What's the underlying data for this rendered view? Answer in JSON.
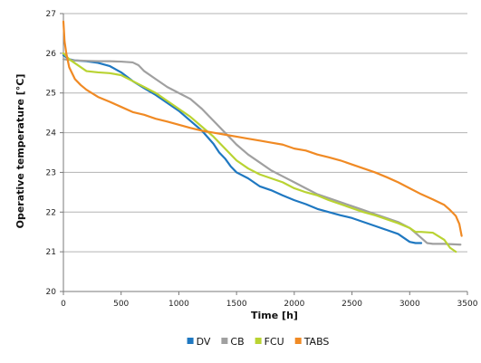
{
  "chart_data": {
    "type": "line",
    "xlabel": "Time [h]",
    "ylabel": "Operative temperature [°C]",
    "xlim": [
      0,
      3500
    ],
    "ylim": [
      20,
      27
    ],
    "x_ticks": [
      0,
      500,
      1000,
      1500,
      2000,
      2500,
      3000,
      3500
    ],
    "y_ticks": [
      20,
      21,
      22,
      23,
      24,
      25,
      26,
      27
    ],
    "grid": "horizontal",
    "legend_position": "bottom",
    "series": [
      {
        "name": "DV",
        "color": "#1f78c1",
        "points": [
          [
            0,
            25.95
          ],
          [
            50,
            25.85
          ],
          [
            100,
            25.82
          ],
          [
            200,
            25.8
          ],
          [
            300,
            25.76
          ],
          [
            400,
            25.68
          ],
          [
            500,
            25.52
          ],
          [
            600,
            25.3
          ],
          [
            700,
            25.12
          ],
          [
            800,
            24.95
          ],
          [
            900,
            24.75
          ],
          [
            1000,
            24.55
          ],
          [
            1100,
            24.3
          ],
          [
            1200,
            24.05
          ],
          [
            1300,
            23.72
          ],
          [
            1350,
            23.5
          ],
          [
            1400,
            23.35
          ],
          [
            1450,
            23.15
          ],
          [
            1500,
            23.0
          ],
          [
            1600,
            22.85
          ],
          [
            1700,
            22.65
          ],
          [
            1800,
            22.55
          ],
          [
            1900,
            22.42
          ],
          [
            2000,
            22.3
          ],
          [
            2100,
            22.2
          ],
          [
            2200,
            22.08
          ],
          [
            2300,
            22.0
          ],
          [
            2400,
            21.92
          ],
          [
            2500,
            21.85
          ],
          [
            2600,
            21.75
          ],
          [
            2700,
            21.65
          ],
          [
            2800,
            21.55
          ],
          [
            2900,
            21.45
          ],
          [
            2950,
            21.35
          ],
          [
            3000,
            21.25
          ],
          [
            3050,
            21.22
          ],
          [
            3100,
            21.22
          ]
        ]
      },
      {
        "name": "CB",
        "color": "#a0a0a0",
        "points": [
          [
            0,
            25.85
          ],
          [
            100,
            25.82
          ],
          [
            200,
            25.81
          ],
          [
            300,
            25.8
          ],
          [
            400,
            25.8
          ],
          [
            500,
            25.79
          ],
          [
            600,
            25.77
          ],
          [
            650,
            25.7
          ],
          [
            700,
            25.55
          ],
          [
            800,
            25.35
          ],
          [
            900,
            25.15
          ],
          [
            1000,
            25.0
          ],
          [
            1100,
            24.85
          ],
          [
            1200,
            24.6
          ],
          [
            1300,
            24.3
          ],
          [
            1400,
            24.0
          ],
          [
            1500,
            23.7
          ],
          [
            1600,
            23.45
          ],
          [
            1700,
            23.25
          ],
          [
            1800,
            23.05
          ],
          [
            1900,
            22.9
          ],
          [
            2000,
            22.75
          ],
          [
            2100,
            22.6
          ],
          [
            2200,
            22.45
          ],
          [
            2300,
            22.35
          ],
          [
            2400,
            22.25
          ],
          [
            2500,
            22.15
          ],
          [
            2600,
            22.05
          ],
          [
            2700,
            21.95
          ],
          [
            2800,
            21.85
          ],
          [
            2900,
            21.75
          ],
          [
            3000,
            21.6
          ],
          [
            3100,
            21.35
          ],
          [
            3150,
            21.22
          ],
          [
            3200,
            21.2
          ],
          [
            3300,
            21.2
          ],
          [
            3440,
            21.18
          ]
        ]
      },
      {
        "name": "FCU",
        "color": "#b9d332",
        "points": [
          [
            0,
            26.0
          ],
          [
            50,
            25.85
          ],
          [
            100,
            25.75
          ],
          [
            150,
            25.65
          ],
          [
            200,
            25.55
          ],
          [
            300,
            25.52
          ],
          [
            400,
            25.5
          ],
          [
            500,
            25.45
          ],
          [
            600,
            25.3
          ],
          [
            700,
            25.15
          ],
          [
            800,
            25.0
          ],
          [
            900,
            24.8
          ],
          [
            1000,
            24.6
          ],
          [
            1100,
            24.4
          ],
          [
            1200,
            24.15
          ],
          [
            1300,
            23.9
          ],
          [
            1400,
            23.6
          ],
          [
            1500,
            23.3
          ],
          [
            1600,
            23.1
          ],
          [
            1700,
            22.95
          ],
          [
            1800,
            22.85
          ],
          [
            1900,
            22.75
          ],
          [
            2000,
            22.6
          ],
          [
            2100,
            22.5
          ],
          [
            2200,
            22.42
          ],
          [
            2300,
            22.3
          ],
          [
            2400,
            22.2
          ],
          [
            2500,
            22.1
          ],
          [
            2600,
            22.0
          ],
          [
            2700,
            21.92
          ],
          [
            2800,
            21.82
          ],
          [
            2900,
            21.72
          ],
          [
            3000,
            21.6
          ],
          [
            3050,
            21.5
          ],
          [
            3100,
            21.5
          ],
          [
            3200,
            21.48
          ],
          [
            3300,
            21.3
          ],
          [
            3350,
            21.1
          ],
          [
            3400,
            21.0
          ]
        ]
      },
      {
        "name": "TABS",
        "color": "#f08a24",
        "points": [
          [
            0,
            26.8
          ],
          [
            10,
            26.3
          ],
          [
            25,
            26.0
          ],
          [
            50,
            25.65
          ],
          [
            100,
            25.35
          ],
          [
            150,
            25.2
          ],
          [
            200,
            25.08
          ],
          [
            300,
            24.9
          ],
          [
            400,
            24.78
          ],
          [
            500,
            24.65
          ],
          [
            600,
            24.52
          ],
          [
            700,
            24.45
          ],
          [
            800,
            24.35
          ],
          [
            900,
            24.28
          ],
          [
            1000,
            24.2
          ],
          [
            1100,
            24.12
          ],
          [
            1200,
            24.05
          ],
          [
            1300,
            24.0
          ],
          [
            1400,
            23.95
          ],
          [
            1500,
            23.9
          ],
          [
            1600,
            23.85
          ],
          [
            1700,
            23.8
          ],
          [
            1800,
            23.75
          ],
          [
            1900,
            23.7
          ],
          [
            2000,
            23.6
          ],
          [
            2100,
            23.55
          ],
          [
            2200,
            23.45
          ],
          [
            2300,
            23.38
          ],
          [
            2400,
            23.3
          ],
          [
            2500,
            23.2
          ],
          [
            2600,
            23.1
          ],
          [
            2700,
            23.0
          ],
          [
            2800,
            22.88
          ],
          [
            2900,
            22.75
          ],
          [
            3000,
            22.6
          ],
          [
            3100,
            22.45
          ],
          [
            3200,
            22.32
          ],
          [
            3300,
            22.18
          ],
          [
            3350,
            22.05
          ],
          [
            3400,
            21.9
          ],
          [
            3430,
            21.7
          ],
          [
            3450,
            21.4
          ]
        ]
      }
    ]
  }
}
